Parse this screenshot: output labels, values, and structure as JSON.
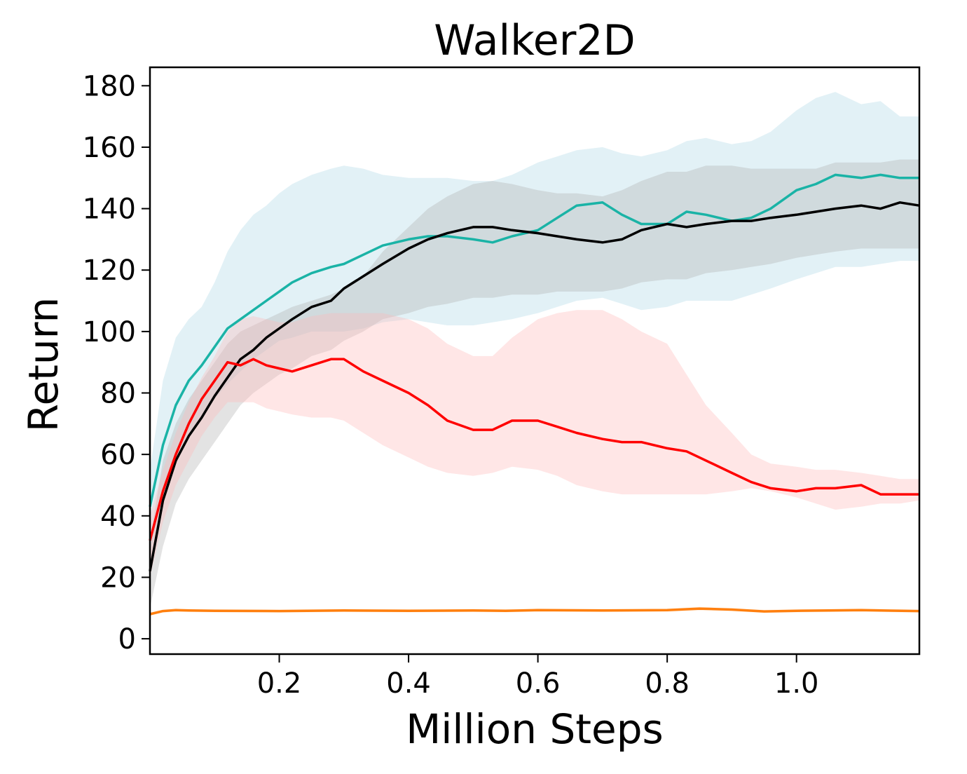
{
  "chart_data": {
    "type": "line",
    "title": "Walker2D",
    "xlabel": "Million Steps",
    "ylabel": "Return",
    "xlim": [
      0.0,
      1.19
    ],
    "ylim": [
      -5,
      186
    ],
    "x_ticks": [
      0.2,
      0.4,
      0.6,
      0.8,
      1.0
    ],
    "x_tick_labels": [
      "0.2",
      "0.4",
      "0.6",
      "0.8",
      "1.0"
    ],
    "y_ticks": [
      0,
      20,
      40,
      60,
      80,
      100,
      120,
      140,
      160,
      180
    ],
    "y_tick_labels": [
      "0",
      "20",
      "40",
      "60",
      "80",
      "100",
      "120",
      "140",
      "160",
      "180"
    ],
    "grid": false,
    "legend": "none",
    "series": [
      {
        "color": "#1ab3a6",
        "band_color": "#add8e6",
        "x": [
          0.0,
          0.02,
          0.04,
          0.06,
          0.08,
          0.1,
          0.12,
          0.14,
          0.16,
          0.18,
          0.2,
          0.22,
          0.25,
          0.28,
          0.3,
          0.33,
          0.36,
          0.4,
          0.43,
          0.46,
          0.5,
          0.53,
          0.56,
          0.6,
          0.63,
          0.66,
          0.7,
          0.73,
          0.76,
          0.8,
          0.83,
          0.86,
          0.9,
          0.93,
          0.96,
          1.0,
          1.03,
          1.06,
          1.1,
          1.13,
          1.16,
          1.19
        ],
        "values": [
          43,
          63,
          76,
          84,
          89,
          95,
          101,
          104,
          107,
          110,
          113,
          116,
          119,
          121,
          122,
          125,
          128,
          130,
          131,
          131,
          130,
          129,
          131,
          133,
          137,
          141,
          142,
          138,
          135,
          135,
          139,
          138,
          136,
          137,
          140,
          146,
          148,
          151,
          150,
          151,
          150,
          150
        ],
        "lower": [
          28,
          45,
          58,
          66,
          72,
          78,
          83,
          87,
          91,
          94,
          97,
          98,
          100,
          100,
          100,
          101,
          103,
          104,
          103,
          102,
          102,
          103,
          104,
          106,
          108,
          110,
          111,
          109,
          107,
          108,
          110,
          110,
          110,
          112,
          114,
          117,
          119,
          121,
          121,
          122,
          123,
          123
        ],
        "upper": [
          55,
          84,
          98,
          104,
          108,
          116,
          126,
          133,
          138,
          141,
          145,
          148,
          151,
          153,
          154,
          153,
          151,
          150,
          150,
          150,
          149,
          149,
          151,
          155,
          157,
          159,
          160,
          158,
          157,
          159,
          162,
          163,
          161,
          162,
          165,
          172,
          176,
          178,
          174,
          175,
          170,
          170
        ]
      },
      {
        "color": "#000000",
        "band_color": "#b0b0b0",
        "x": [
          0.0,
          0.02,
          0.04,
          0.06,
          0.08,
          0.1,
          0.12,
          0.14,
          0.16,
          0.18,
          0.2,
          0.22,
          0.25,
          0.28,
          0.3,
          0.33,
          0.36,
          0.4,
          0.43,
          0.46,
          0.5,
          0.53,
          0.56,
          0.6,
          0.63,
          0.66,
          0.7,
          0.73,
          0.76,
          0.8,
          0.83,
          0.86,
          0.9,
          0.93,
          0.96,
          1.0,
          1.03,
          1.06,
          1.1,
          1.13,
          1.16,
          1.19
        ],
        "values": [
          22,
          45,
          58,
          66,
          72,
          79,
          85,
          91,
          94,
          98,
          101,
          104,
          108,
          110,
          114,
          118,
          122,
          127,
          130,
          132,
          134,
          134,
          133,
          132,
          131,
          130,
          129,
          130,
          133,
          135,
          134,
          135,
          136,
          136,
          137,
          138,
          139,
          140,
          141,
          140,
          142,
          141
        ],
        "lower": [
          10,
          30,
          44,
          52,
          58,
          64,
          70,
          76,
          80,
          83,
          86,
          88,
          92,
          94,
          97,
          100,
          104,
          106,
          108,
          109,
          111,
          111,
          112,
          112,
          113,
          113,
          113,
          114,
          116,
          117,
          117,
          119,
          120,
          121,
          122,
          124,
          125,
          126,
          127,
          127,
          127,
          127
        ],
        "upper": [
          32,
          58,
          70,
          78,
          84,
          90,
          96,
          100,
          102,
          104,
          106,
          108,
          110,
          112,
          114,
          118,
          126,
          134,
          140,
          144,
          148,
          149,
          148,
          146,
          145,
          145,
          144,
          146,
          149,
          152,
          152,
          154,
          154,
          153,
          153,
          153,
          153,
          155,
          155,
          155,
          156,
          156
        ]
      },
      {
        "color": "#ff0000",
        "band_color": "#ffb6b6",
        "x": [
          0.0,
          0.02,
          0.04,
          0.06,
          0.08,
          0.1,
          0.12,
          0.14,
          0.16,
          0.18,
          0.2,
          0.22,
          0.25,
          0.28,
          0.3,
          0.33,
          0.36,
          0.4,
          0.43,
          0.46,
          0.5,
          0.53,
          0.56,
          0.6,
          0.63,
          0.66,
          0.7,
          0.73,
          0.76,
          0.8,
          0.83,
          0.86,
          0.9,
          0.93,
          0.96,
          1.0,
          1.03,
          1.06,
          1.1,
          1.13,
          1.16,
          1.19
        ],
        "values": [
          32,
          48,
          60,
          70,
          78,
          84,
          90,
          89,
          91,
          89,
          88,
          87,
          89,
          91,
          91,
          87,
          84,
          80,
          76,
          71,
          68,
          68,
          71,
          71,
          69,
          67,
          65,
          64,
          64,
          62,
          61,
          58,
          54,
          51,
          49,
          48,
          49,
          49,
          50,
          47,
          47,
          47
        ],
        "lower": [
          20,
          38,
          50,
          58,
          66,
          72,
          77,
          77,
          77,
          75,
          74,
          73,
          72,
          72,
          71,
          67,
          63,
          59,
          56,
          54,
          53,
          54,
          56,
          55,
          53,
          50,
          48,
          47,
          47,
          47,
          47,
          47,
          48,
          49,
          48,
          46,
          44,
          42,
          43,
          44,
          44,
          45
        ],
        "upper": [
          40,
          55,
          67,
          77,
          85,
          92,
          100,
          104,
          105,
          104,
          103,
          103,
          105,
          106,
          106,
          106,
          106,
          104,
          101,
          96,
          92,
          92,
          98,
          104,
          106,
          107,
          107,
          104,
          100,
          96,
          86,
          76,
          67,
          60,
          57,
          56,
          55,
          55,
          54,
          53,
          52,
          52
        ]
      },
      {
        "color": "#ff7f0e",
        "band_color": "#ffd8b0",
        "x": [
          0.0,
          0.02,
          0.04,
          0.06,
          0.1,
          0.2,
          0.3,
          0.4,
          0.5,
          0.55,
          0.6,
          0.7,
          0.8,
          0.85,
          0.9,
          0.95,
          1.0,
          1.05,
          1.1,
          1.19
        ],
        "values": [
          8,
          9,
          9.3,
          9.2,
          9.1,
          9.0,
          9.2,
          9.1,
          9.2,
          9.1,
          9.3,
          9.2,
          9.3,
          9.8,
          9.5,
          8.9,
          9.1,
          9.2,
          9.3,
          9.0
        ],
        "lower": [
          7.5,
          8.5,
          8.8,
          8.7,
          8.6,
          8.5,
          8.7,
          8.6,
          8.7,
          8.6,
          8.8,
          8.7,
          8.8,
          9.2,
          9.0,
          8.4,
          8.6,
          8.7,
          8.8,
          8.5
        ],
        "upper": [
          8.5,
          9.5,
          9.8,
          9.7,
          9.6,
          9.5,
          9.7,
          9.6,
          9.7,
          9.6,
          9.8,
          9.7,
          9.8,
          10.4,
          10.0,
          9.4,
          9.6,
          9.7,
          9.8,
          9.5
        ]
      }
    ]
  }
}
